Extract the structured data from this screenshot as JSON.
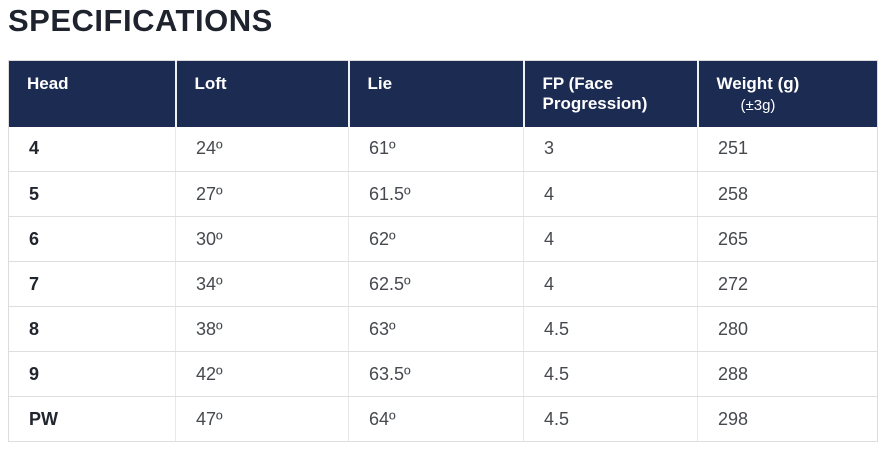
{
  "page": {
    "title": "SPECIFICATIONS"
  },
  "colors": {
    "header_background": "#1c2b52",
    "header_text": "#ffffff",
    "body_text": "#46494e",
    "head_column_text": "#21252e",
    "row_divider": "#dedede"
  },
  "table": {
    "columns": [
      {
        "label": "Head"
      },
      {
        "label": "Loft"
      },
      {
        "label": "Lie"
      },
      {
        "label": "FP (Face Progression)"
      },
      {
        "label": "Weight (g)",
        "sublabel": "(±3g)"
      }
    ],
    "rows": [
      {
        "head": "4",
        "loft": "24º",
        "lie": "61º",
        "fp": "3",
        "weight": "251"
      },
      {
        "head": "5",
        "loft": "27º",
        "lie": "61.5º",
        "fp": "4",
        "weight": "258"
      },
      {
        "head": "6",
        "loft": "30º",
        "lie": "62º",
        "fp": "4",
        "weight": "265"
      },
      {
        "head": "7",
        "loft": "34º",
        "lie": "62.5º",
        "fp": "4",
        "weight": "272"
      },
      {
        "head": "8",
        "loft": "38º",
        "lie": "63º",
        "fp": "4.5",
        "weight": "280"
      },
      {
        "head": "9",
        "loft": "42º",
        "lie": "63.5º",
        "fp": "4.5",
        "weight": "288"
      },
      {
        "head": "PW",
        "loft": "47º",
        "lie": "64º",
        "fp": "4.5",
        "weight": "298"
      }
    ]
  }
}
